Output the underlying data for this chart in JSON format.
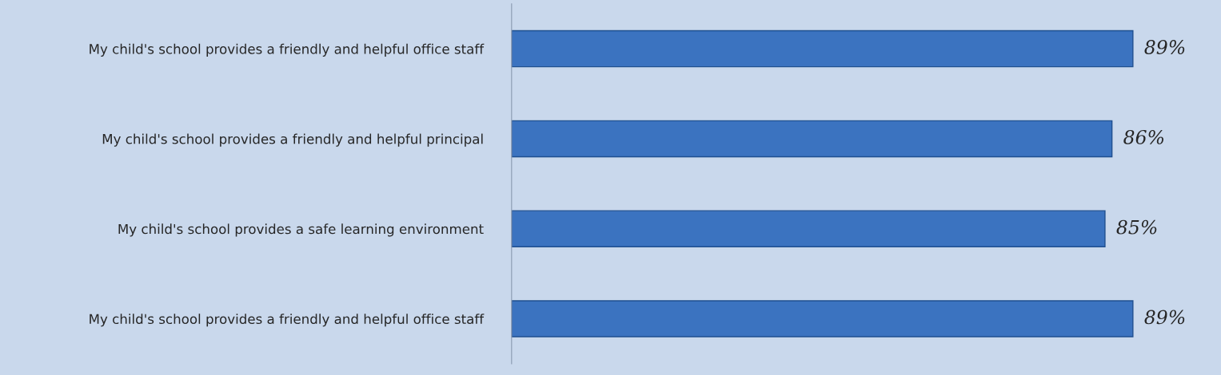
{
  "chart_data": {
    "type": "bar",
    "orientation": "horizontal",
    "categories": [
      "My child's school provides a friendly and helpful office staff",
      "My child's school provides a friendly and helpful principal",
      "My child's school provides a safe learning environment",
      "My child's school provides a friendly and helpful office staff"
    ],
    "values": [
      89,
      86,
      85,
      89
    ],
    "value_labels": [
      "89%",
      "86%",
      "85%",
      "89%"
    ],
    "color": "#3b73c0",
    "tick_labels": "y",
    "grid": false
  }
}
